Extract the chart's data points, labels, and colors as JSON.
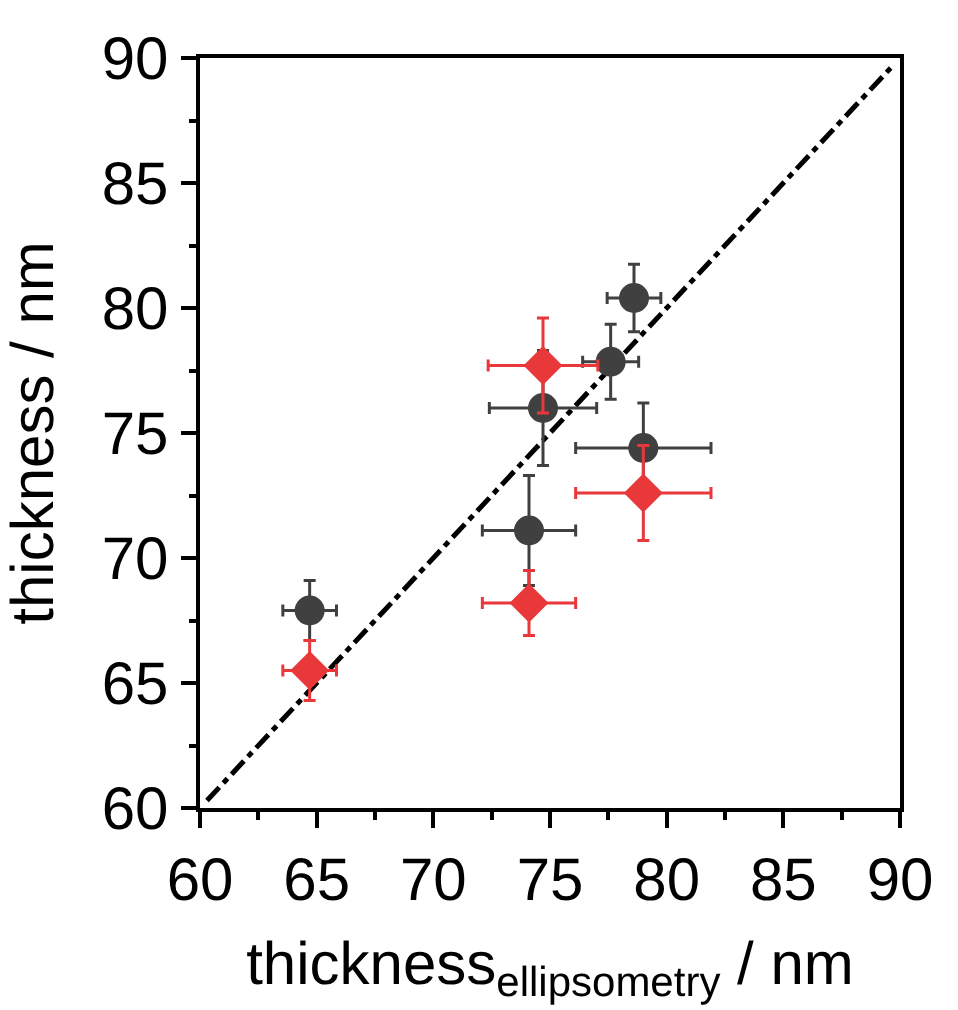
{
  "chart_data": {
    "type": "scatter",
    "xlabel": "thickness$_{ellipsometry}$ / nm",
    "ylabel": "thickness / nm",
    "xlim": [
      60,
      90
    ],
    "ylim": [
      60,
      90
    ],
    "xticks": [
      60,
      {
        "value": 62.5,
        "label": null
      },
      65,
      {
        "value": 67.5,
        "label": null
      },
      70,
      {
        "value": 72.5,
        "label": null
      },
      75,
      {
        "value": 77.5,
        "label": null
      },
      80,
      {
        "value": 82.5,
        "label": null
      },
      85,
      {
        "value": 87.5,
        "label": null
      },
      90
    ],
    "yticks": [
      60,
      {
        "value": 62.5,
        "label": null
      },
      65,
      {
        "value": 67.5,
        "label": null
      },
      70,
      {
        "value": 72.5,
        "label": null
      },
      75,
      {
        "value": 77.5,
        "label": null
      },
      80,
      {
        "value": 82.5,
        "label": null
      },
      85,
      {
        "value": 87.5,
        "label": null
      },
      90
    ],
    "series": [
      {
        "type": "line",
        "color": "#000000",
        "line_style": "dashed",
        "marker": "none",
        "x": [
          60.3,
          89.6
        ],
        "values": [
          60.3,
          89.6
        ]
      },
      {
        "color": "#404040",
        "marker": "circle",
        "x": [
          64.7,
          74.7,
          77.6,
          78.6,
          79.0,
          74.1
        ],
        "values": [
          67.9,
          76.0,
          77.85,
          80.4,
          74.4,
          71.1
        ],
        "xerrors": [
          1.15,
          2.3,
          1.2,
          1.15,
          2.9,
          2.0
        ],
        "errors": [
          1.2,
          2.3,
          1.5,
          1.35,
          1.8,
          2.2
        ]
      },
      {
        "color": "#e8383a",
        "marker": "diamond",
        "x": [
          64.7,
          74.7,
          74.1,
          79.0
        ],
        "values": [
          65.5,
          77.7,
          68.2,
          72.6
        ],
        "xerrors": [
          1.15,
          2.35,
          2.0,
          2.9
        ],
        "errors": [
          1.2,
          1.9,
          1.3,
          1.9
        ]
      }
    ]
  }
}
